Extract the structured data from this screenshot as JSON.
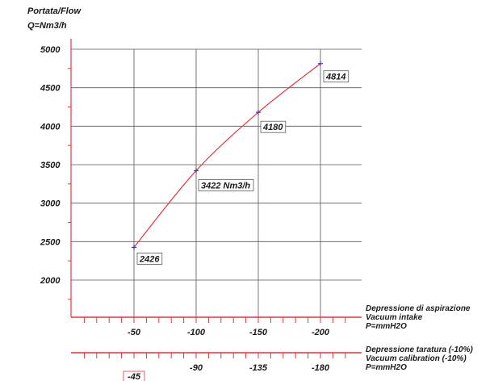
{
  "chart_data": {
    "type": "line",
    "title": "",
    "ylabel_line1": "Portata/Flow",
    "ylabel_line2": "Q=Nm3/h",
    "ylim": [
      1600,
      5100
    ],
    "yticks": [
      "5000",
      "4500",
      "4000",
      "3500",
      "3000",
      "2500",
      "2000"
    ],
    "ytick_values": [
      5000,
      4500,
      4000,
      3500,
      3000,
      2500,
      2000
    ],
    "xlim": [
      0,
      -230
    ],
    "grid": true,
    "x": [
      -50,
      -100,
      -150,
      -200
    ],
    "series": [
      {
        "values": [
          2426,
          3422,
          4180,
          4814
        ],
        "color": "#e8323c"
      }
    ],
    "data_labels": [
      "2426",
      "3422 Nm3/h",
      "4180",
      "4814"
    ],
    "x_axis_1": {
      "ticks": [
        "-50",
        "-100",
        "-150",
        "-200"
      ],
      "tick_values": [
        -50,
        -100,
        -150,
        -200
      ],
      "caption": [
        "Depressione di aspirazione",
        "Vacuum intake",
        "P=mmH2O"
      ]
    },
    "x_axis_2": {
      "ticks": [
        "-45",
        "-90",
        "-135",
        "-180"
      ],
      "tick_values": [
        -45,
        -90,
        -135,
        -180
      ],
      "highlighted": "-45",
      "caption": [
        "Depressione taratura (-10%)",
        "Vacuum calibration (-10%)",
        "P=mmH2O"
      ]
    },
    "colors": {
      "axis_red": "#e8323c",
      "curve": "#e8323c",
      "grid": "#555555",
      "text": "#1a1a1a"
    }
  }
}
